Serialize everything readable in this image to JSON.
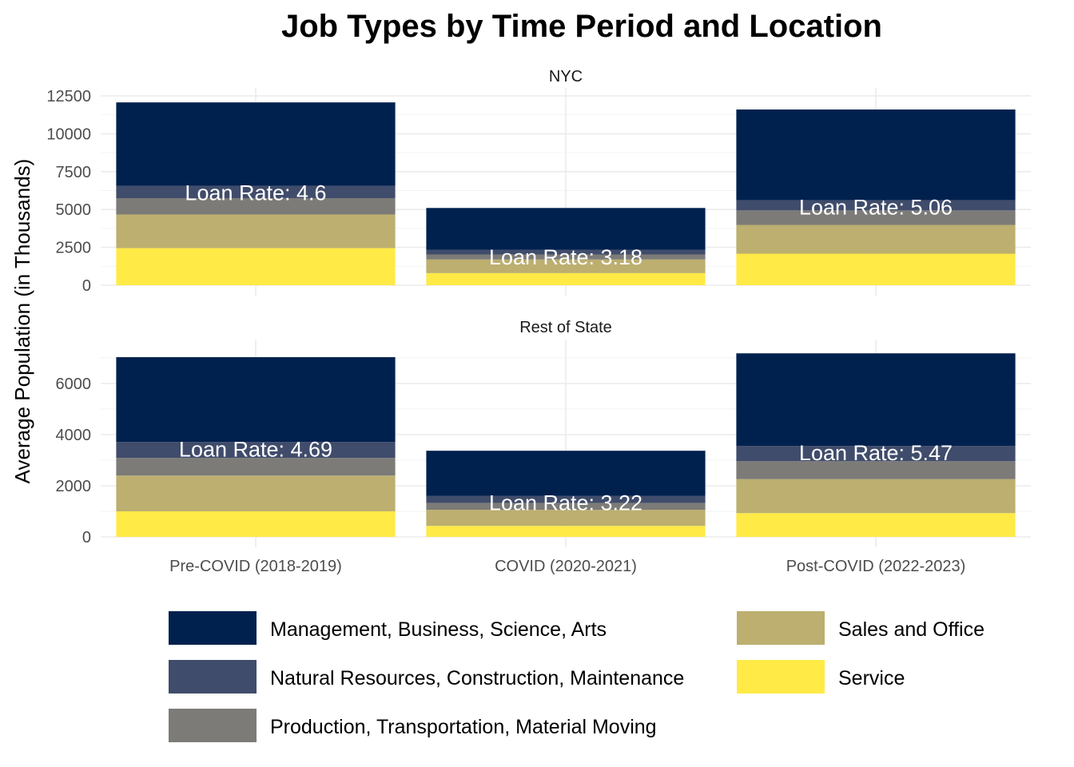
{
  "chart_data": {
    "type": "bar",
    "stacked": true,
    "title": "Job Types by Time Period and Location",
    "xlabel": "",
    "ylabel": "Average Population (in Thousands)",
    "categories": [
      "Pre-COVID (2018-2019)",
      "COVID (2020-2021)",
      "Post-COVID (2022-2023)"
    ],
    "series_order": [
      "Service",
      "Sales and Office",
      "Production, Transportation, Material Moving",
      "Natural Resources, Construction, Maintenance",
      "Management, Business, Science, Arts"
    ],
    "colors": {
      "Management, Business, Science, Arts": "#00214e",
      "Natural Resources, Construction, Maintenance": "#404c6b",
      "Production, Transportation, Material Moving": "#7c7b78",
      "Sales and Office": "#bcaf6f",
      "Service": "#ffea46"
    },
    "facets": [
      {
        "label": "NYC",
        "ylim": [
          0,
          12500
        ],
        "yticks": [
          0,
          2500,
          5000,
          7500,
          10000,
          12500
        ],
        "series": [
          {
            "name": "Service",
            "values": [
              2450,
              800,
              2080
            ]
          },
          {
            "name": "Sales and Office",
            "values": [
              2220,
              900,
              1900
            ]
          },
          {
            "name": "Production, Transportation, Material Moving",
            "values": [
              1080,
              330,
              960
            ]
          },
          {
            "name": "Natural Resources, Construction, Maintenance",
            "values": [
              810,
              300,
              680
            ]
          },
          {
            "name": "Management, Business, Science, Arts",
            "values": [
              5510,
              2770,
              5980
            ]
          }
        ],
        "annotations": [
          "Loan Rate: 4.6",
          "Loan Rate: 3.18",
          "Loan Rate: 5.06"
        ]
      },
      {
        "label": "Rest of State",
        "ylim": [
          0,
          7000
        ],
        "yticks": [
          0,
          2000,
          4000,
          6000
        ],
        "series": [
          {
            "name": "Service",
            "values": [
              1000,
              430,
              930
            ]
          },
          {
            "name": "Sales and Office",
            "values": [
              1400,
              630,
              1330
            ]
          },
          {
            "name": "Production, Transportation, Material Moving",
            "values": [
              690,
              270,
              700
            ]
          },
          {
            "name": "Natural Resources, Construction, Maintenance",
            "values": [
              620,
              280,
              600
            ]
          },
          {
            "name": "Management, Business, Science, Arts",
            "values": [
              3320,
              1760,
              3620
            ]
          }
        ],
        "annotations": [
          "Loan Rate: 4.69",
          "Loan Rate: 3.22",
          "Loan Rate: 5.47"
        ]
      }
    ],
    "legend": {
      "position": "bottom",
      "columns": [
        [
          "Management, Business, Science, Arts",
          "Natural Resources, Construction, Maintenance",
          "Production, Transportation, Material Moving"
        ],
        [
          "Sales and Office",
          "Service"
        ]
      ]
    },
    "grid": true
  }
}
